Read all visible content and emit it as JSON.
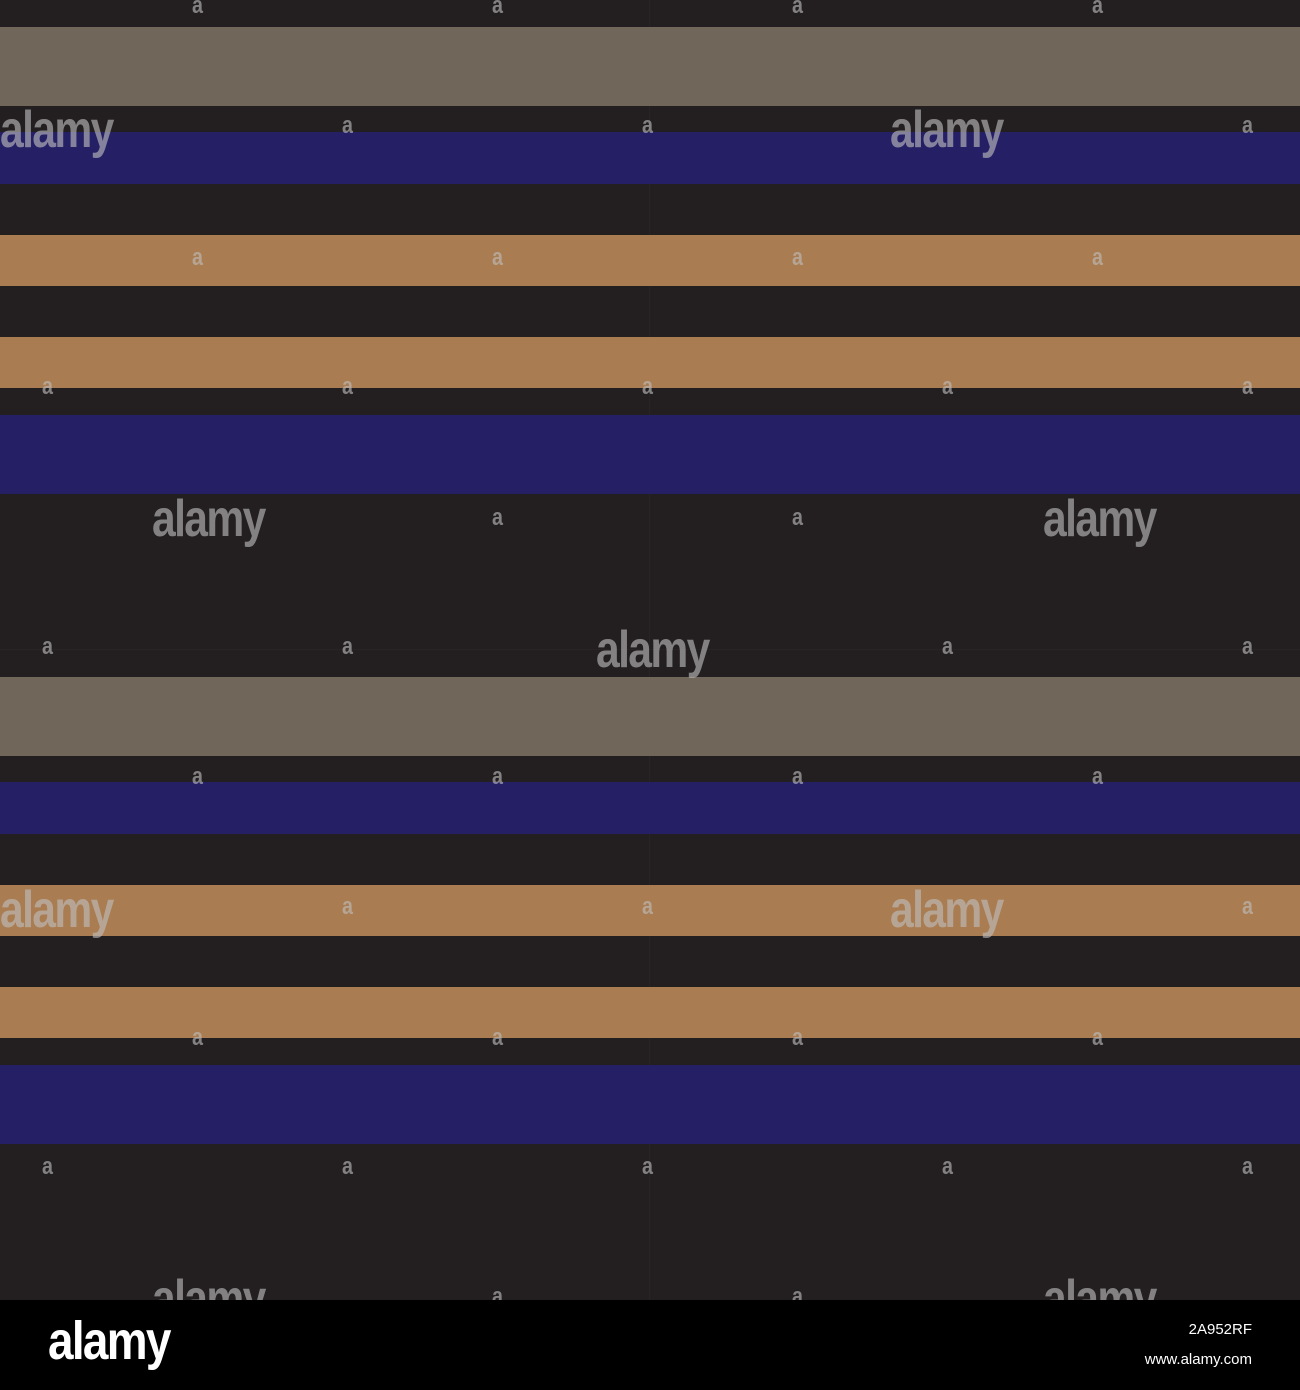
{
  "pattern": {
    "background_color": "#231f20",
    "colors": {
      "taupe": "#71665a",
      "navy": "#252066",
      "tan": "#a97c51"
    },
    "stripes": [
      "taupe",
      "navy",
      "tan",
      "tan",
      "navy",
      "taupe",
      "navy",
      "tan",
      "tan",
      "navy"
    ]
  },
  "watermark": {
    "big_text": "alamy",
    "small_text": "a"
  },
  "footer": {
    "logo": "alamy",
    "image_id": "2A952RF",
    "url": "www.alamy.com"
  }
}
